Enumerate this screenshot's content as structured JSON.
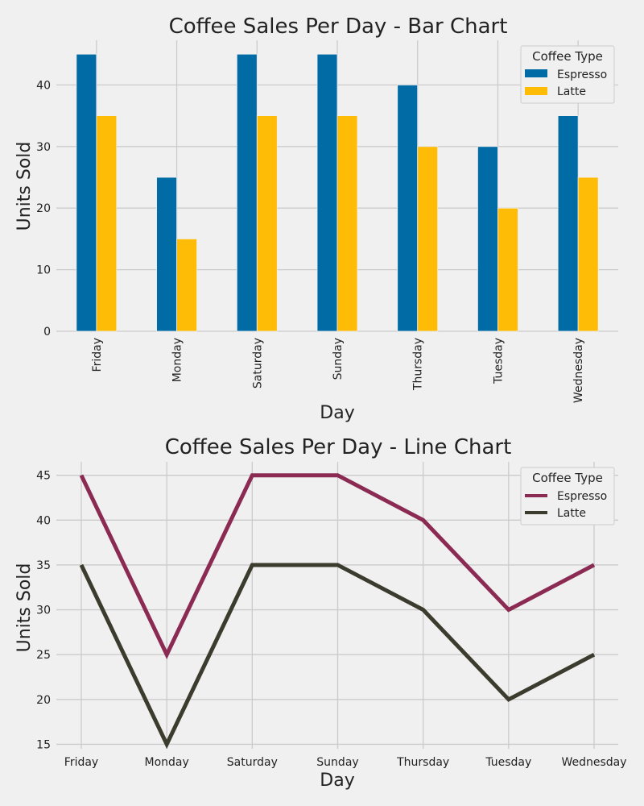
{
  "chart_data": [
    {
      "type": "bar",
      "title": "Coffee Sales Per Day - Bar Chart",
      "xlabel": "Day",
      "ylabel": "Units Sold",
      "categories": [
        "Friday",
        "Monday",
        "Saturday",
        "Sunday",
        "Thursday",
        "Tuesday",
        "Wednesday"
      ],
      "series": [
        {
          "name": "Espresso",
          "values": [
            45,
            25,
            45,
            45,
            40,
            30,
            35
          ],
          "color": "#006ba4"
        },
        {
          "name": "Latte",
          "values": [
            35,
            15,
            35,
            35,
            30,
            20,
            25
          ],
          "color": "#ffbc06"
        }
      ],
      "ylim": [
        0,
        47.25
      ],
      "yticks": [
        0,
        10,
        20,
        30,
        40
      ],
      "grid": true,
      "legend": {
        "title": "Coffee Type",
        "placement": "top-right"
      }
    },
    {
      "type": "line",
      "title": "Coffee Sales Per Day - Line Chart",
      "xlabel": "Day",
      "ylabel": "Units Sold",
      "categories": [
        "Friday",
        "Monday",
        "Saturday",
        "Sunday",
        "Thursday",
        "Tuesday",
        "Wednesday"
      ],
      "series": [
        {
          "name": "Espresso",
          "values": [
            45,
            25,
            45,
            45,
            40,
            30,
            35
          ],
          "color": "#8b2a52"
        },
        {
          "name": "Latte",
          "values": [
            35,
            15,
            35,
            35,
            30,
            20,
            25
          ],
          "color": "#3c3c2e"
        }
      ],
      "ylim": [
        14.5,
        46.5
      ],
      "yticks": [
        15,
        20,
        25,
        30,
        35,
        40,
        45
      ],
      "grid": true,
      "legend": {
        "title": "Coffee Type",
        "placement": "top-right"
      }
    }
  ]
}
